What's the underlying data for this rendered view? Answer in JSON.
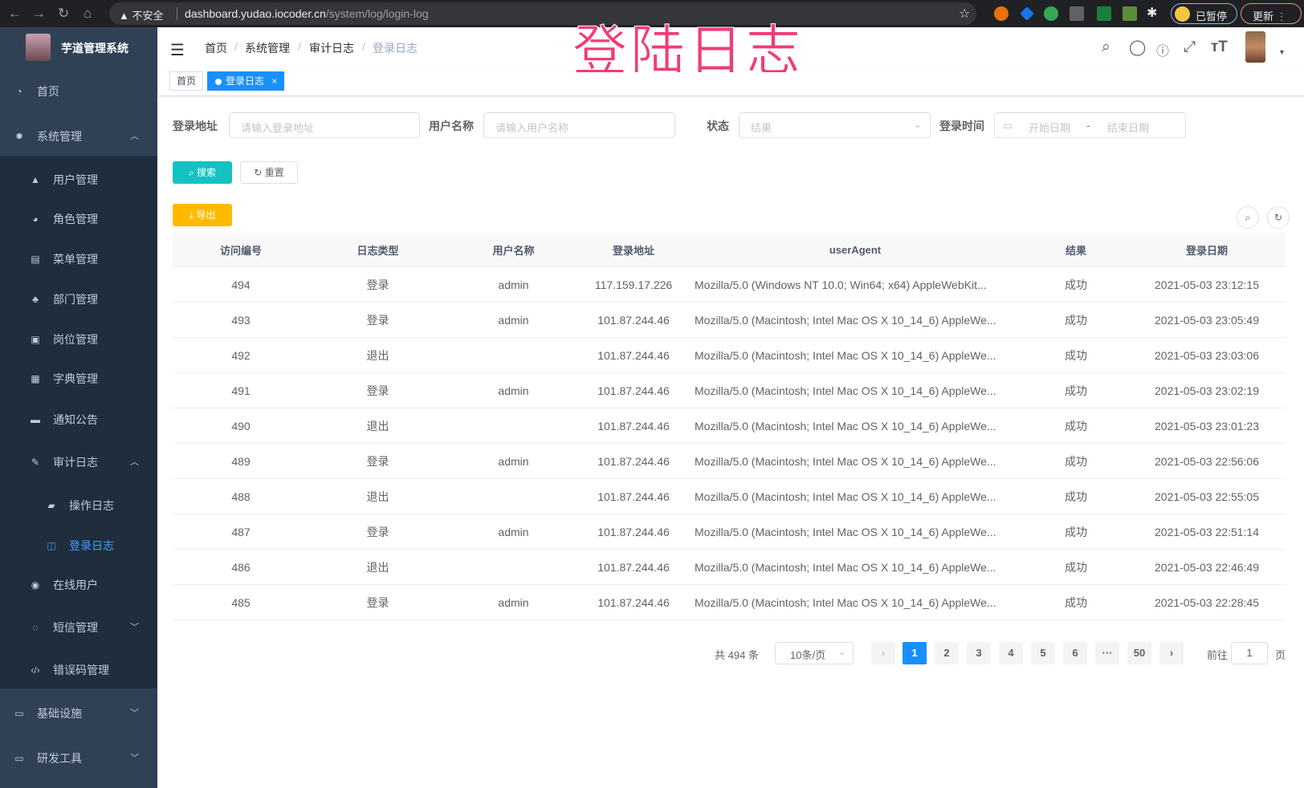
{
  "browser": {
    "security_label": "不安全",
    "url_host": "dashboard.yudao.iocoder.cn",
    "url_path": "/system/log/login-log",
    "profile_label": "已暂停",
    "update_label": "更新"
  },
  "app": {
    "title": "芋道管理系统",
    "overlay_title": "登陆日志"
  },
  "sidebar": {
    "items": [
      {
        "label": "首页",
        "icon": "dashboard-icon"
      },
      {
        "label": "系统管理",
        "icon": "gear-icon",
        "expanded": true
      },
      {
        "label": "用户管理",
        "icon": "user-icon"
      },
      {
        "label": "角色管理",
        "icon": "peoples-icon"
      },
      {
        "label": "菜单管理",
        "icon": "tree-table-icon"
      },
      {
        "label": "部门管理",
        "icon": "tree-icon"
      },
      {
        "label": "岗位管理",
        "icon": "post-icon"
      },
      {
        "label": "字典管理",
        "icon": "dict-icon"
      },
      {
        "label": "通知公告",
        "icon": "message-icon"
      },
      {
        "label": "审计日志",
        "icon": "log-icon",
        "expanded": true
      },
      {
        "label": "操作日志",
        "icon": "form-icon"
      },
      {
        "label": "登录日志",
        "icon": "logininfor-icon",
        "active": true
      },
      {
        "label": "在线用户",
        "icon": "online-icon"
      },
      {
        "label": "短信管理",
        "icon": "validcode-icon",
        "expanded": false
      },
      {
        "label": "错误码管理",
        "icon": "code-icon"
      },
      {
        "label": "基础设施",
        "icon": "monitor-icon",
        "expanded": false
      },
      {
        "label": "研发工具",
        "icon": "tool-icon",
        "expanded": false
      }
    ]
  },
  "breadcrumb": [
    "首页",
    "系统管理",
    "审计日志",
    "登录日志"
  ],
  "tags": [
    {
      "label": "首页"
    },
    {
      "label": "登录日志",
      "active": true,
      "close": "×"
    }
  ],
  "filters": {
    "address": {
      "label": "登录地址",
      "placeholder": "请输入登录地址"
    },
    "username": {
      "label": "用户名称",
      "placeholder": "请输入用户名称"
    },
    "status": {
      "label": "状态",
      "placeholder": "结果"
    },
    "time": {
      "label": "登录时间",
      "start_placeholder": "开始日期",
      "separator": "-",
      "end_placeholder": "结束日期"
    }
  },
  "buttons": {
    "search": "搜索",
    "reset": "重置",
    "export": "导出"
  },
  "colors": {
    "sidebar": "#304156",
    "submenu": "#1f2d3d",
    "primary": "#1890ff",
    "search_btn": "#13c2c2",
    "export_btn": "#ffba00",
    "overlay": "#ef3d78"
  },
  "table": {
    "columns": [
      "访问编号",
      "日志类型",
      "用户名称",
      "登录地址",
      "userAgent",
      "结果",
      "登录日期"
    ],
    "rows": [
      [
        "494",
        "登录",
        "admin",
        "117.159.17.226",
        "Mozilla/5.0 (Windows NT 10.0; Win64; x64) AppleWebKit...",
        "成功",
        "2021-05-03 23:12:15"
      ],
      [
        "493",
        "登录",
        "admin",
        "101.87.244.46",
        "Mozilla/5.0 (Macintosh; Intel Mac OS X 10_14_6) AppleWe...",
        "成功",
        "2021-05-03 23:05:49"
      ],
      [
        "492",
        "退出",
        "",
        "101.87.244.46",
        "Mozilla/5.0 (Macintosh; Intel Mac OS X 10_14_6) AppleWe...",
        "成功",
        "2021-05-03 23:03:06"
      ],
      [
        "491",
        "登录",
        "admin",
        "101.87.244.46",
        "Mozilla/5.0 (Macintosh; Intel Mac OS X 10_14_6) AppleWe...",
        "成功",
        "2021-05-03 23:02:19"
      ],
      [
        "490",
        "退出",
        "",
        "101.87.244.46",
        "Mozilla/5.0 (Macintosh; Intel Mac OS X 10_14_6) AppleWe...",
        "成功",
        "2021-05-03 23:01:23"
      ],
      [
        "489",
        "登录",
        "admin",
        "101.87.244.46",
        "Mozilla/5.0 (Macintosh; Intel Mac OS X 10_14_6) AppleWe...",
        "成功",
        "2021-05-03 22:56:06"
      ],
      [
        "488",
        "退出",
        "",
        "101.87.244.46",
        "Mozilla/5.0 (Macintosh; Intel Mac OS X 10_14_6) AppleWe...",
        "成功",
        "2021-05-03 22:55:05"
      ],
      [
        "487",
        "登录",
        "admin",
        "101.87.244.46",
        "Mozilla/5.0 (Macintosh; Intel Mac OS X 10_14_6) AppleWe...",
        "成功",
        "2021-05-03 22:51:14"
      ],
      [
        "486",
        "退出",
        "",
        "101.87.244.46",
        "Mozilla/5.0 (Macintosh; Intel Mac OS X 10_14_6) AppleWe...",
        "成功",
        "2021-05-03 22:46:49"
      ],
      [
        "485",
        "登录",
        "admin",
        "101.87.244.46",
        "Mozilla/5.0 (Macintosh; Intel Mac OS X 10_14_6) AppleWe...",
        "成功",
        "2021-05-03 22:28:45"
      ]
    ]
  },
  "pagination": {
    "total_text": "共 494 条",
    "page_size": "10条/页",
    "pages": [
      "1",
      "2",
      "3",
      "4",
      "5",
      "6",
      "···",
      "50"
    ],
    "current": "1",
    "goto_label": "前往",
    "goto_value": "1",
    "goto_suffix": "页"
  }
}
